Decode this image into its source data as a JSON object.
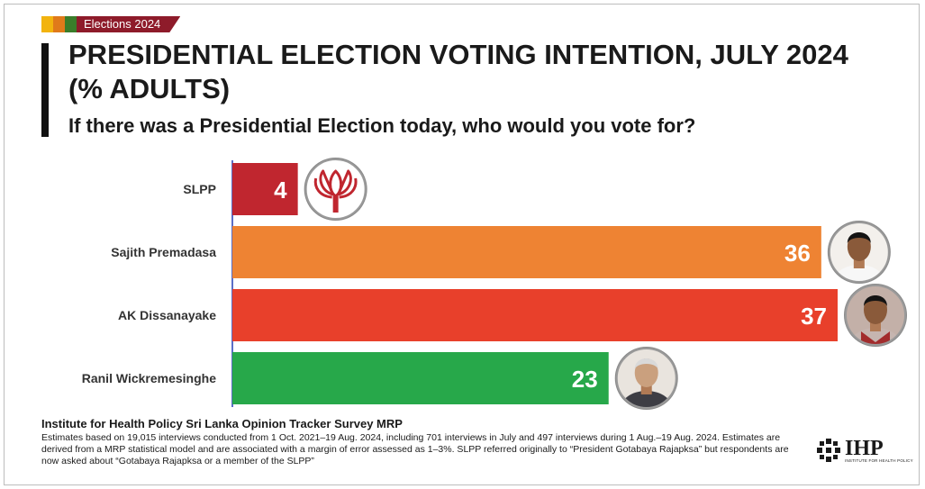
{
  "tag": {
    "label": "Elections 2024",
    "swatch_colors": [
      "#f2b30e",
      "#e07a1a",
      "#3a7d2a"
    ]
  },
  "title": "PRESIDENTIAL ELECTION VOTING INTENTION, JULY 2024 (% ADULTS)",
  "subtitle": "If there was a Presidential Election today, who would you vote for?",
  "chart_data": {
    "type": "bar",
    "orientation": "horizontal",
    "categories": [
      "SLPP",
      "Sajith Premadasa",
      "AK Dissanayake",
      "Ranil Wickremesinghe"
    ],
    "values": [
      4,
      36,
      37,
      23
    ],
    "colors": [
      "#c0262f",
      "#ee8333",
      "#e8402b",
      "#27a84a"
    ],
    "icons": [
      "slpp-lotus-icon",
      "sajith-premadasa-photo",
      "ak-dissanayake-photo",
      "ranil-wickremesinghe-photo"
    ],
    "xlim": [
      0,
      37
    ],
    "data_labels": true,
    "grid": false
  },
  "source": {
    "title": "Institute for Health Policy Sri Lanka Opinion Tracker Survey MRP",
    "text": "Estimates based on 19,015 interviews conducted from 1 Oct. 2021–19 Aug. 2024, including 701 interviews in July and 497 interviews during 1 Aug.–19 Aug. 2024. Estimates are derived from a MRP statistical model and are associated with a margin of error assessed as 1–3%. SLPP referred originally to “President Gotabaya Rajapksa” but respondents are now asked about “Gotabaya Rajapksa or a member of the SLPP”"
  },
  "logo": {
    "name": "IHP",
    "tagline": "INSTITUTE FOR HEALTH POLICY"
  }
}
